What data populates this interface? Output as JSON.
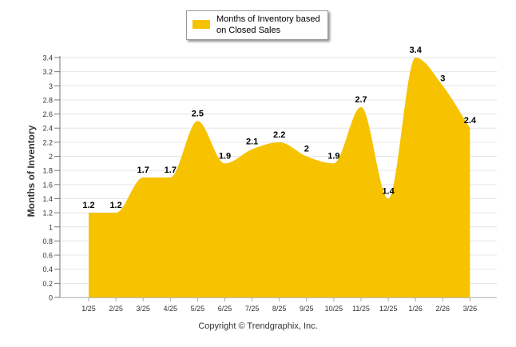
{
  "chart_data": {
    "type": "area",
    "categories": [
      "1/25",
      "2/25",
      "3/25",
      "4/25",
      "5/25",
      "6/25",
      "7/25",
      "8/25",
      "9/25",
      "10/25",
      "11/25",
      "12/25",
      "1/26",
      "2/26",
      "3/26"
    ],
    "values": [
      1.2,
      1.2,
      1.7,
      1.7,
      2.5,
      1.9,
      2.1,
      2.2,
      2.0,
      1.9,
      2.7,
      1.4,
      3.4,
      3.0,
      2.4
    ],
    "data_labels": [
      "1.2",
      "1.2",
      "1.7",
      "1.7",
      "2.5",
      "1.9",
      "2.1",
      "2.2",
      "2",
      "1.9",
      "2.7",
      "1.4",
      "3.4",
      "3",
      "2.4"
    ],
    "series_name": "Months of Inventory based on Closed Sales",
    "ylabel": "Months of Inventory",
    "xlabel": "",
    "ylim": [
      0,
      3.4
    ],
    "yticks": [
      "0",
      "0.2",
      "0.4",
      "0.6",
      "0.8",
      "1",
      "1.2",
      "1.4",
      "1.6",
      "1.8",
      "2",
      "2.2",
      "2.4",
      "2.6",
      "2.8",
      "3",
      "3.2",
      "3.4"
    ],
    "grid": true,
    "legend_position": "top-center",
    "color": "#F7C200"
  },
  "legend": {
    "line1": "Months of Inventory based",
    "line2": "on Closed Sales"
  },
  "credit": "Copyright © Trendgraphix, Inc."
}
